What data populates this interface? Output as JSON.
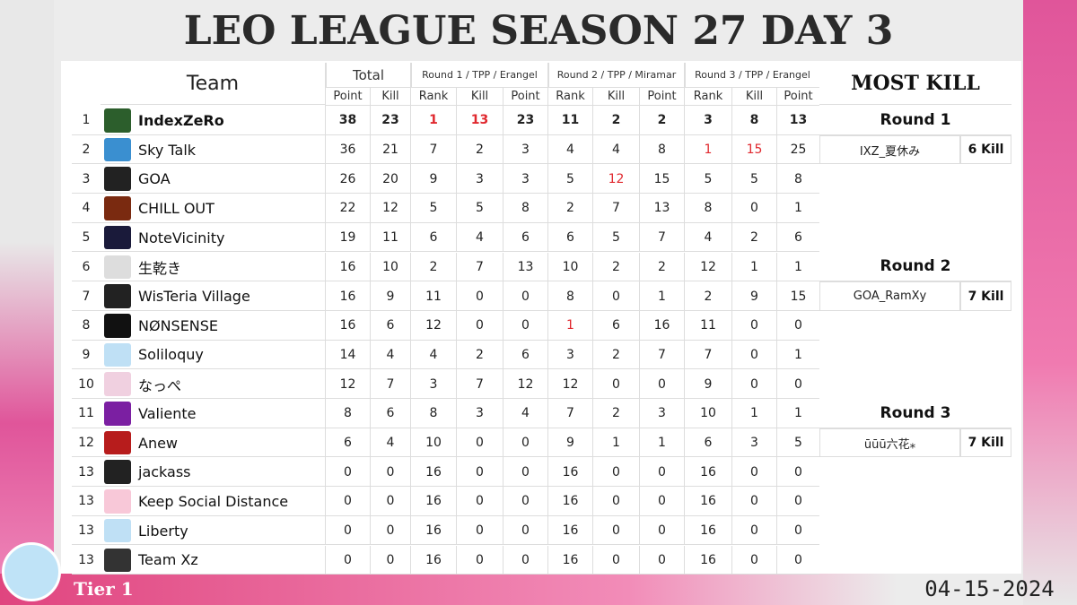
{
  "title": "LEO LEAGUE SEASON 27 DAY 3",
  "table": {
    "team_header": "Team",
    "groups": [
      "Total",
      "Round 1 / TPP / Erangel",
      "Round 2 / TPP / Miramar",
      "Round 3 / TPP / Erangel"
    ],
    "subheaders": [
      "Point",
      "Kill",
      "Rank",
      "Kill",
      "Point",
      "Rank",
      "Kill",
      "Point",
      "Rank",
      "Kill",
      "Point"
    ],
    "rows": [
      [
        1,
        "IndexZeRo",
        38,
        23,
        1,
        13,
        23,
        11,
        2,
        2,
        3,
        8,
        13
      ],
      [
        2,
        "Sky Talk",
        36,
        21,
        7,
        2,
        3,
        4,
        4,
        8,
        1,
        15,
        25
      ],
      [
        3,
        "GOA",
        26,
        20,
        9,
        3,
        3,
        5,
        12,
        15,
        5,
        5,
        8
      ],
      [
        4,
        "CHILL OUT",
        22,
        12,
        5,
        5,
        8,
        2,
        7,
        13,
        8,
        0,
        1
      ],
      [
        5,
        "NoteVicinity",
        19,
        11,
        6,
        4,
        6,
        6,
        5,
        7,
        4,
        2,
        6
      ],
      [
        6,
        "生乾き",
        16,
        10,
        2,
        7,
        13,
        10,
        2,
        2,
        12,
        1,
        1
      ],
      [
        7,
        "WisTeria Village",
        16,
        9,
        11,
        0,
        0,
        8,
        0,
        1,
        2,
        9,
        15
      ],
      [
        8,
        "NØNSENSE",
        16,
        6,
        12,
        0,
        0,
        1,
        6,
        16,
        11,
        0,
        0
      ],
      [
        9,
        "Soliloquy",
        14,
        4,
        4,
        2,
        6,
        3,
        2,
        7,
        7,
        0,
        1
      ],
      [
        10,
        "なっぺ",
        12,
        7,
        3,
        7,
        12,
        12,
        0,
        0,
        9,
        0,
        0
      ],
      [
        11,
        "Valiente",
        8,
        6,
        8,
        3,
        4,
        7,
        2,
        3,
        10,
        1,
        1
      ],
      [
        12,
        "Anew",
        6,
        4,
        10,
        0,
        0,
        9,
        1,
        1,
        6,
        3,
        5
      ],
      [
        13,
        "jackass",
        0,
        0,
        16,
        0,
        0,
        16,
        0,
        0,
        16,
        0,
        0
      ],
      [
        13,
        "Keep Social Distance",
        0,
        0,
        16,
        0,
        0,
        16,
        0,
        0,
        16,
        0,
        0
      ],
      [
        13,
        "Liberty",
        0,
        0,
        16,
        0,
        0,
        16,
        0,
        0,
        16,
        0,
        0
      ],
      [
        13,
        "Team Xz",
        0,
        0,
        16,
        0,
        0,
        16,
        0,
        0,
        16,
        0,
        0
      ]
    ]
  },
  "most_kill": {
    "title": "MOST KILL",
    "rounds": [
      {
        "round": "Round 1",
        "player": "IXZ_夏休み",
        "kills": "6 Kill"
      },
      {
        "round": "Round 2",
        "player": "GOA_RamXy",
        "kills": "7 Kill"
      },
      {
        "round": "Round 3",
        "player": "ūūū六花⁎",
        "kills": "7 Kill"
      }
    ]
  },
  "footer": {
    "tier": "Tier 1",
    "date": "04-15-2024"
  }
}
